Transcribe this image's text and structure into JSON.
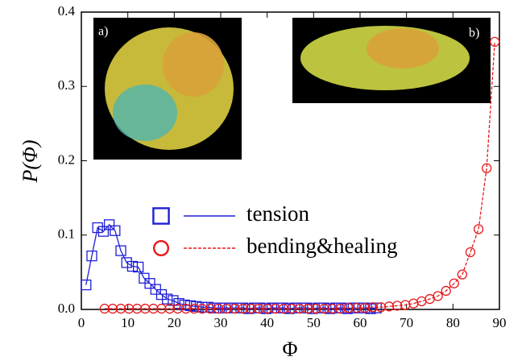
{
  "chart_data": {
    "type": "line",
    "x_label": "Φ",
    "y_label": "P(Φ)",
    "annotations": [
      "a)",
      "b)"
    ],
    "xlim": [
      0,
      90
    ],
    "xticks": [
      0,
      10,
      20,
      30,
      40,
      50,
      60,
      70,
      80,
      90
    ],
    "ylim": [
      0,
      0.4
    ],
    "yticks": [
      {
        "value": 0,
        "label": "0.0"
      },
      0.1,
      0.2,
      0.3,
      0.4
    ],
    "series": [
      {
        "name": "tension",
        "color": "#1f1fd6",
        "marker": "square",
        "dashed": false,
        "x": [
          1,
          2.25,
          3.5,
          4.75,
          6,
          7.25,
          8.5,
          9.75,
          11,
          12.25,
          13.5,
          14.75,
          16,
          17.25,
          18.5,
          19.75,
          21,
          22.25,
          23.5,
          24.75,
          26,
          27.25,
          28.5,
          29.75,
          31,
          32.25,
          33.5,
          34.75,
          36,
          37.25,
          38.5,
          39.75,
          41,
          42.25,
          43.5,
          44.75,
          46,
          47.25,
          48.5,
          49.75,
          51,
          52.25,
          53.5,
          54.75,
          56,
          57.25,
          58.5,
          59.75,
          61,
          62.25,
          63.5
        ],
        "values": [
          0.033,
          0.072,
          0.11,
          0.105,
          0.114,
          0.106,
          0.079,
          0.063,
          0.058,
          0.057,
          0.042,
          0.035,
          0.027,
          0.02,
          0.014,
          0.012,
          0.008,
          0.006,
          0.005,
          0.004,
          0.003,
          0.003,
          0.002,
          0.002,
          0.002,
          0.002,
          0.002,
          0.002,
          0.001,
          0.002,
          0.002,
          0.001,
          0.002,
          0.002,
          0.002,
          0.001,
          0.002,
          0.002,
          0.002,
          0.001,
          0.002,
          0.002,
          0.001,
          0.002,
          0.002,
          0.001,
          0.002,
          0.002,
          0.002,
          0.001,
          0.002
        ]
      },
      {
        "name": "bending&healing",
        "color": "#e8191b",
        "marker": "circle",
        "dashed": true,
        "x": [
          5,
          6.75,
          8.5,
          10.25,
          12,
          13.75,
          15.5,
          17.25,
          19,
          20.75,
          22.5,
          24.25,
          26,
          27.75,
          29.5,
          31.25,
          33,
          34.75,
          36.5,
          38.25,
          40,
          41.75,
          43.5,
          45.25,
          47,
          48.75,
          50.5,
          52.25,
          54,
          55.75,
          57.5,
          59.25,
          61,
          62.75,
          64.5,
          66.25,
          68,
          69.75,
          71.5,
          73.25,
          75,
          76.75,
          78.5,
          80.25,
          82,
          83.75,
          85.5,
          87.25,
          89
        ],
        "values": [
          0.001,
          0.001,
          0.001,
          0.001,
          0.001,
          0.001,
          0.001,
          0.001,
          0.001,
          0.001,
          0.001,
          0.001,
          0.001,
          0.001,
          0.001,
          0.001,
          0.001,
          0.001,
          0.001,
          0.001,
          0.001,
          0.001,
          0.001,
          0.001,
          0.001,
          0.001,
          0.001,
          0.001,
          0.001,
          0.001,
          0.002,
          0.002,
          0.002,
          0.003,
          0.003,
          0.004,
          0.005,
          0.006,
          0.008,
          0.011,
          0.014,
          0.018,
          0.025,
          0.035,
          0.047,
          0.077,
          0.108,
          0.19,
          0.36
        ]
      }
    ]
  }
}
